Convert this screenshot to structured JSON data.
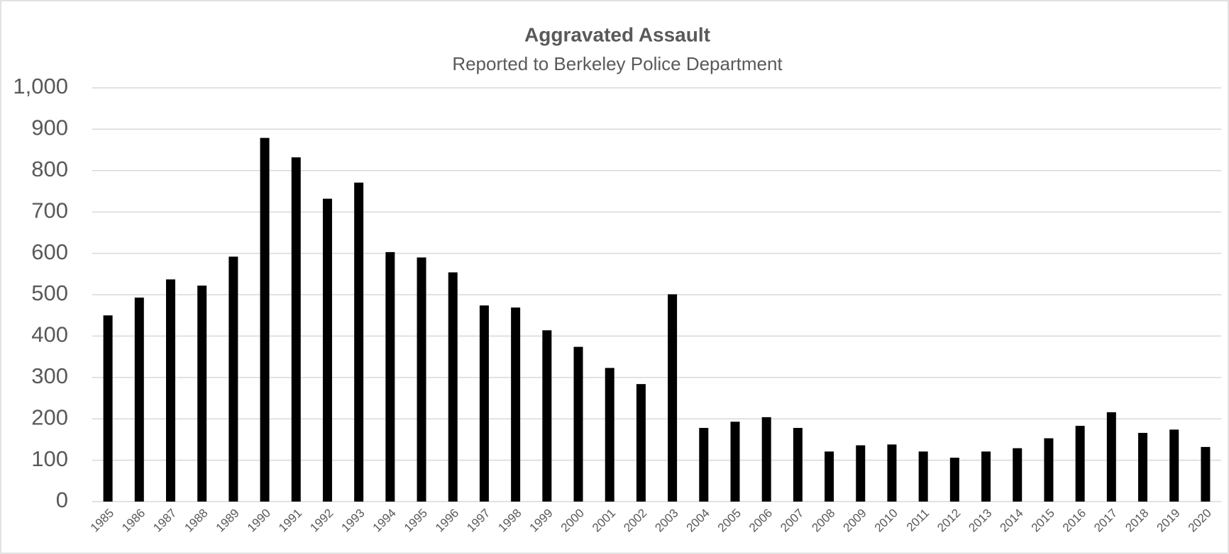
{
  "chart_data": {
    "type": "bar",
    "title": "Aggravated Assault",
    "subtitle": "Reported to Berkeley Police Department",
    "categories": [
      "1985",
      "1986",
      "1987",
      "1988",
      "1989",
      "1990",
      "1991",
      "1992",
      "1993",
      "1994",
      "1995",
      "1996",
      "1997",
      "1998",
      "1999",
      "2000",
      "2001",
      "2002",
      "2003",
      "2004",
      "2005",
      "2006",
      "2007",
      "2008",
      "2009",
      "2010",
      "2011",
      "2012",
      "2013",
      "2014",
      "2015",
      "2016",
      "2017",
      "2018",
      "2019",
      "2020"
    ],
    "values": [
      450,
      493,
      537,
      522,
      592,
      879,
      832,
      732,
      771,
      603,
      590,
      554,
      474,
      469,
      414,
      374,
      323,
      284,
      501,
      178,
      193,
      204,
      178,
      121,
      136,
      138,
      121,
      106,
      121,
      129,
      153,
      183,
      216,
      166,
      174,
      132
    ],
    "color": "#000000",
    "ylim": [
      0,
      1000
    ],
    "yticks": [
      0,
      100,
      200,
      300,
      400,
      500,
      600,
      700,
      800,
      900,
      {
        "value": 1000,
        "label": "1,000"
      }
    ],
    "grid": true
  }
}
